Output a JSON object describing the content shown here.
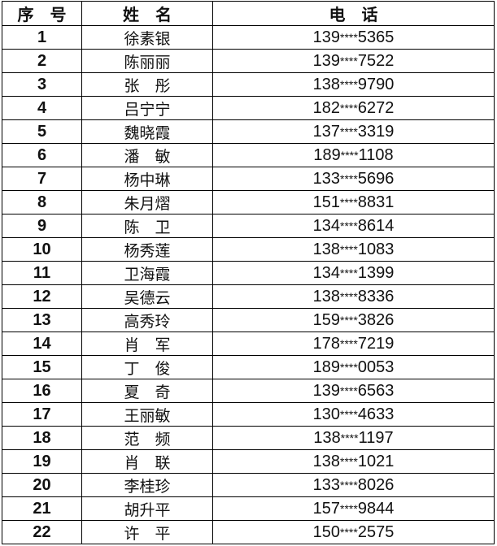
{
  "header": {
    "index": "序　号",
    "name": "姓　名",
    "phone": "电　话"
  },
  "rows": [
    {
      "index": "1",
      "name": "徐素银",
      "phone_prefix": "139",
      "phone_mask": "****",
      "phone_suffix": "5365"
    },
    {
      "index": "2",
      "name": "陈丽丽",
      "phone_prefix": "139",
      "phone_mask": "****",
      "phone_suffix": "7522"
    },
    {
      "index": "3",
      "name": "张　彤",
      "phone_prefix": "138",
      "phone_mask": "****",
      "phone_suffix": "9790"
    },
    {
      "index": "4",
      "name": "吕宁宁",
      "phone_prefix": "182",
      "phone_mask": "****",
      "phone_suffix": "6272"
    },
    {
      "index": "5",
      "name": "魏晓霞",
      "phone_prefix": "137",
      "phone_mask": "****",
      "phone_suffix": "3319"
    },
    {
      "index": "6",
      "name": "潘　敏",
      "phone_prefix": "189",
      "phone_mask": "****",
      "phone_suffix": "1108"
    },
    {
      "index": "7",
      "name": "杨中琳",
      "phone_prefix": "133",
      "phone_mask": "****",
      "phone_suffix": "5696"
    },
    {
      "index": "8",
      "name": "朱月熠",
      "phone_prefix": "151",
      "phone_mask": "****",
      "phone_suffix": "8831"
    },
    {
      "index": "9",
      "name": "陈　卫",
      "phone_prefix": "134",
      "phone_mask": "****",
      "phone_suffix": "8614"
    },
    {
      "index": "10",
      "name": "杨秀莲",
      "phone_prefix": "138",
      "phone_mask": "****",
      "phone_suffix": "1083"
    },
    {
      "index": "11",
      "name": "卫海霞",
      "phone_prefix": "134",
      "phone_mask": "****",
      "phone_suffix": "1399"
    },
    {
      "index": "12",
      "name": "吴德云",
      "phone_prefix": "138",
      "phone_mask": "****",
      "phone_suffix": "8336"
    },
    {
      "index": "13",
      "name": "高秀玲",
      "phone_prefix": "159",
      "phone_mask": "****",
      "phone_suffix": "3826"
    },
    {
      "index": "14",
      "name": "肖　军",
      "phone_prefix": "178",
      "phone_mask": "****",
      "phone_suffix": "7219"
    },
    {
      "index": "15",
      "name": "丁　俊",
      "phone_prefix": "189",
      "phone_mask": "****",
      "phone_suffix": "0053"
    },
    {
      "index": "16",
      "name": "夏　奇",
      "phone_prefix": "139",
      "phone_mask": "****",
      "phone_suffix": "6563"
    },
    {
      "index": "17",
      "name": "王丽敏",
      "phone_prefix": "130",
      "phone_mask": "****",
      "phone_suffix": "4633"
    },
    {
      "index": "18",
      "name": "范　频",
      "phone_prefix": "138",
      "phone_mask": "****",
      "phone_suffix": "1197"
    },
    {
      "index": "19",
      "name": "肖　联",
      "phone_prefix": "138",
      "phone_mask": "****",
      "phone_suffix": "1021"
    },
    {
      "index": "20",
      "name": "李桂珍",
      "phone_prefix": "133",
      "phone_mask": "****",
      "phone_suffix": "8026"
    },
    {
      "index": "21",
      "name": "胡升平",
      "phone_prefix": "157",
      "phone_mask": "****",
      "phone_suffix": "9844"
    },
    {
      "index": "22",
      "name": "许　平",
      "phone_prefix": "150",
      "phone_mask": "****",
      "phone_suffix": "2575"
    }
  ]
}
